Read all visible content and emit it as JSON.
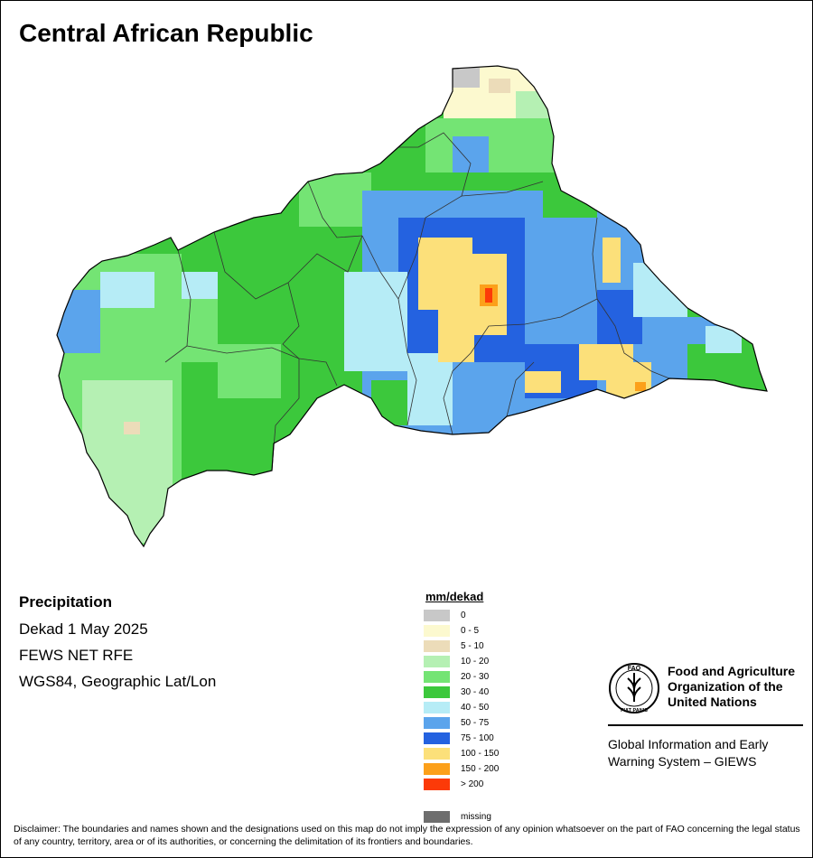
{
  "map": {
    "title": "Central African Republic",
    "info": {
      "heading": "Precipitation",
      "lines": [
        "Dekad 1 May 2025",
        "FEWS NET RFE",
        "WGS84, Geographic Lat/Lon"
      ]
    },
    "legend": {
      "title": "mm/dekad",
      "items": [
        {
          "label": "0",
          "color": "#c8c8c8"
        },
        {
          "label": "0 - 5",
          "color": "#fcf9cf"
        },
        {
          "label": "5 - 10",
          "color": "#ecdcb9"
        },
        {
          "label": "10 - 20",
          "color": "#b5f0b3"
        },
        {
          "label": "20 - 30",
          "color": "#74e474"
        },
        {
          "label": "30 - 40",
          "color": "#3cc83c"
        },
        {
          "label": "40 - 50",
          "color": "#b6ecf6"
        },
        {
          "label": "50 - 75",
          "color": "#5ba4ec"
        },
        {
          "label": "75 - 100",
          "color": "#2462e0"
        },
        {
          "label": "100 - 150",
          "color": "#fce07a"
        },
        {
          "label": "150 - 200",
          "color": "#fca01a"
        },
        {
          "label": "> 200",
          "color": "#fc3a08"
        }
      ],
      "missing": {
        "label": "missing",
        "color": "#6e6e6e"
      }
    },
    "fao": {
      "emblem_letters": "FAO",
      "emblem_motto": "FIAT PANIS",
      "name_lines": [
        "Food and Agriculture",
        "Organization of the",
        "United Nations"
      ],
      "giews_lines": [
        "Global Information and Early",
        "Warning System – GIEWS"
      ]
    },
    "disclaimer": "Disclaimer: The boundaries and names shown and the designations used on this map do not imply the expression of any opinion whatsoever on the part of FAO concerning the legal status of any country, territory, area or of its authorities, or concerning the delimitation of its frontiers and boundaries."
  }
}
